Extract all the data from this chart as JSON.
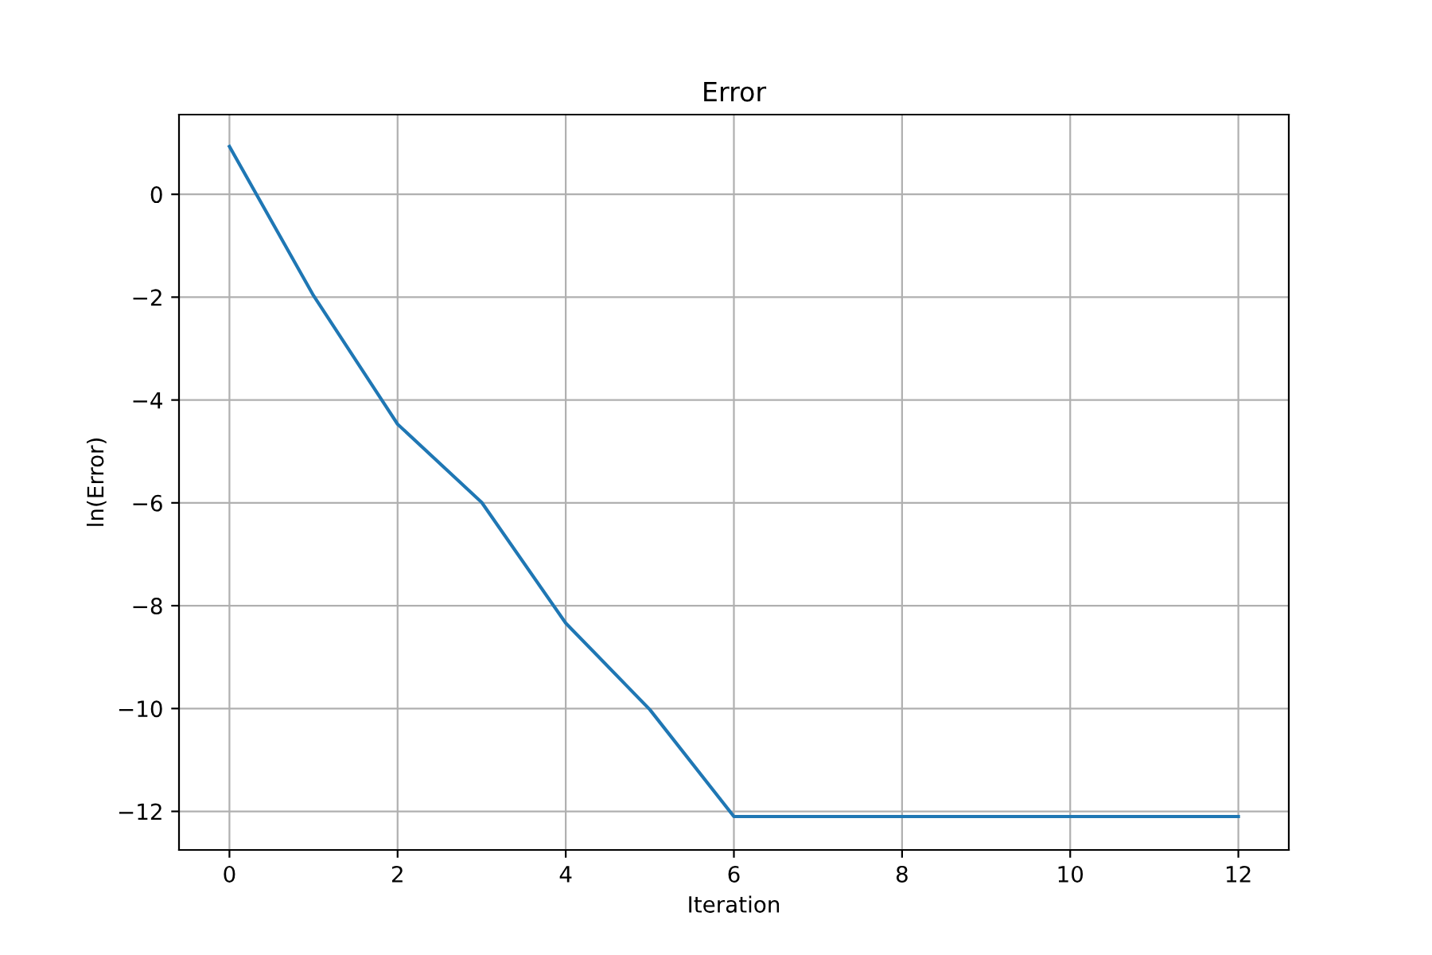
{
  "chart_data": {
    "type": "line",
    "title": "Error",
    "xlabel": "Iteration",
    "ylabel": "ln(Error)",
    "x": [
      0,
      1,
      2,
      3,
      4,
      5,
      6,
      7,
      8,
      9,
      10,
      11,
      12
    ],
    "series": [
      {
        "color": "#1f77b4",
        "values": [
          0.93,
          -1.97,
          -4.47,
          -5.99,
          -8.34,
          -10.02,
          -12.1,
          -12.1,
          -12.1,
          -12.1,
          -12.1,
          -12.1,
          -12.1
        ]
      }
    ],
    "xlim": [
      -0.6,
      12.6
    ],
    "xticks": [
      0,
      2,
      4,
      6,
      8,
      10,
      12
    ],
    "ylim": [
      -12.75,
      1.55
    ],
    "yticks": [
      {
        "value": 0,
        "label": "0"
      },
      {
        "value": -2,
        "label": "−2"
      },
      {
        "value": -4,
        "label": "−4"
      },
      {
        "value": -6,
        "label": "−6"
      },
      {
        "value": -8,
        "label": "−8"
      },
      {
        "value": -10,
        "label": "−10"
      },
      {
        "value": -12,
        "label": "−12"
      }
    ],
    "grid": true,
    "marker": "none",
    "line_style": "solid"
  }
}
